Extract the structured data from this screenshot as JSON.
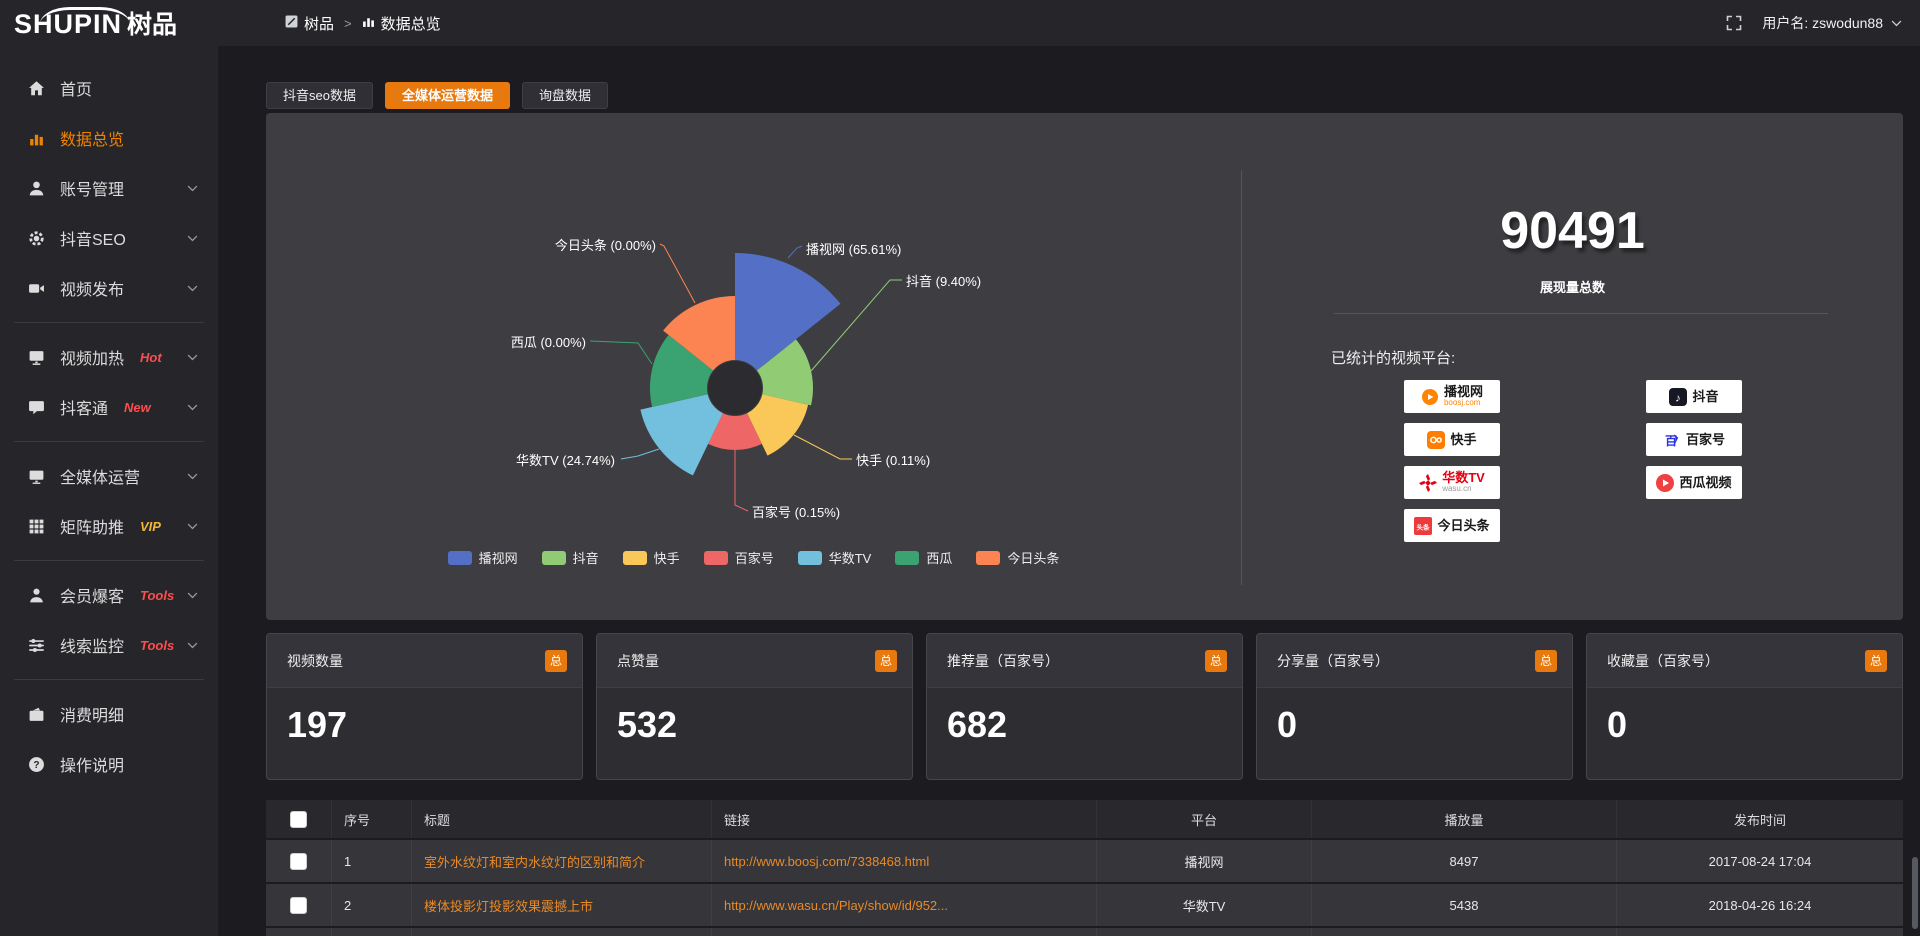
{
  "topbar": {
    "logo_text": "SHUPIN",
    "logo_cn": "树品",
    "breadcrumb": {
      "root": "树品",
      "separator": ">",
      "current": "数据总览"
    },
    "username": "用户名: zswodun88"
  },
  "sidebar": {
    "items": [
      {
        "label": "首页",
        "icon": "home-icon",
        "chevron": false,
        "active": false,
        "badge": null,
        "divider_after": false
      },
      {
        "label": "数据总览",
        "icon": "chart-icon",
        "chevron": false,
        "active": true,
        "badge": null,
        "divider_after": false
      },
      {
        "label": "账号管理",
        "icon": "user-icon",
        "chevron": true,
        "active": false,
        "badge": null,
        "divider_after": false
      },
      {
        "label": "抖音SEO",
        "icon": "gear-icon",
        "chevron": true,
        "active": false,
        "badge": null,
        "divider_after": false
      },
      {
        "label": "视频发布",
        "icon": "video-icon",
        "chevron": true,
        "active": false,
        "badge": null,
        "divider_after": true
      },
      {
        "label": "视频加热",
        "icon": "screen-icon",
        "chevron": true,
        "active": false,
        "badge": {
          "text": "Hot",
          "color": "#ff4d4f"
        },
        "divider_after": false
      },
      {
        "label": "抖客通",
        "icon": "chat-icon",
        "chevron": true,
        "active": false,
        "badge": {
          "text": "New",
          "color": "#ff4d4f"
        },
        "divider_after": true
      },
      {
        "label": "全媒体运营",
        "icon": "monitor-icon",
        "chevron": true,
        "active": false,
        "badge": null,
        "divider_after": false
      },
      {
        "label": "矩阵助推",
        "icon": "grid-icon",
        "chevron": true,
        "active": false,
        "badge": {
          "text": "VIP",
          "color": "#f0b43c"
        },
        "divider_after": true
      },
      {
        "label": "会员爆客",
        "icon": "member-icon",
        "chevron": true,
        "active": false,
        "badge": {
          "text": "Tools",
          "color": "#ff4d4f"
        },
        "divider_after": false
      },
      {
        "label": "线索监控",
        "icon": "sliders-icon",
        "chevron": true,
        "active": false,
        "badge": {
          "text": "Tools",
          "color": "#ff4d4f"
        },
        "divider_after": true
      },
      {
        "label": "消费明细",
        "icon": "wallet-icon",
        "chevron": false,
        "active": false,
        "badge": null,
        "divider_after": false
      },
      {
        "label": "操作说明",
        "icon": "help-icon",
        "chevron": false,
        "active": false,
        "badge": null,
        "divider_after": false
      }
    ]
  },
  "tabs": [
    {
      "label": "抖音seo数据",
      "active": false
    },
    {
      "label": "全媒体运营数据",
      "active": true
    },
    {
      "label": "询盘数据",
      "active": false
    }
  ],
  "chart_data": {
    "type": "pie",
    "variant": "nightingale-rose",
    "title": "",
    "slices": [
      {
        "name": "播视网",
        "pct": 65.61,
        "color": "#5470c6"
      },
      {
        "name": "抖音",
        "pct": 9.4,
        "color": "#91cc75"
      },
      {
        "name": "快手",
        "pct": 0.11,
        "color": "#fac858"
      },
      {
        "name": "百家号",
        "pct": 0.15,
        "color": "#ee6666"
      },
      {
        "name": "华数TV",
        "pct": 24.74,
        "color": "#73c0de"
      },
      {
        "name": "西瓜",
        "pct": 0.0,
        "color": "#3ba272"
      },
      {
        "name": "今日头条",
        "pct": 0.0,
        "color": "#fc8452"
      }
    ],
    "legend": [
      "播视网",
      "抖音",
      "快手",
      "百家号",
      "华数TV",
      "西瓜",
      "今日头条"
    ],
    "legend_position": "bottom"
  },
  "summary": {
    "total_value": "90491",
    "total_label": "展现量总数",
    "platforms_title": "已统计的视频平台:",
    "platforms_left": [
      {
        "name": "播视网",
        "sub": "boosj.com",
        "logo": "boosj",
        "color": "#ff8400"
      },
      {
        "name": "快手",
        "sub": "",
        "logo": "kuaishou",
        "color": "#ff7e00"
      },
      {
        "name": "华数TV",
        "sub": "wasu.cn",
        "logo": "wasu",
        "color": "#e60012"
      },
      {
        "name": "今日头条",
        "sub": "",
        "logo": "toutiao",
        "color": "#ed3b3b"
      }
    ],
    "platforms_right": [
      {
        "name": "抖音",
        "sub": "",
        "logo": "douyin",
        "color": "#161823"
      },
      {
        "name": "百家号",
        "sub": "",
        "logo": "baijiahao",
        "color": "#2932e1"
      },
      {
        "name": "西瓜视频",
        "sub": "",
        "logo": "xigua",
        "color": "#f04142"
      }
    ]
  },
  "stat_cards": [
    {
      "title": "视频数量",
      "badge": "总",
      "value": "197"
    },
    {
      "title": "点赞量",
      "badge": "总",
      "value": "532"
    },
    {
      "title": "推荐量（百家号）",
      "badge": "总",
      "value": "682"
    },
    {
      "title": "分享量（百家号）",
      "badge": "总",
      "value": "0"
    },
    {
      "title": "收藏量（百家号）",
      "badge": "总",
      "value": "0"
    }
  ],
  "table": {
    "headers": [
      "序号",
      "标题",
      "链接",
      "平台",
      "播放量",
      "发布时间"
    ],
    "rows": [
      {
        "num": "1",
        "title": "室外水纹灯和室内水纹灯的区别和简介",
        "link": "http://www.boosj.com/7338468.html",
        "platform": "播视网",
        "plays": "8497",
        "time": "2017-08-24 17:04",
        "checked": false
      },
      {
        "num": "2",
        "title": "楼体投影灯投影效果震撼上市",
        "link": "http://www.wasu.cn/Play/show/id/952...",
        "platform": "华数TV",
        "plays": "5438",
        "time": "2018-04-26 16:24",
        "checked": false
      }
    ]
  },
  "colors": {
    "accent": "#e8790e",
    "link": "#ea8a25",
    "hot": "#ff4d4f",
    "vip": "#f0b43c"
  }
}
